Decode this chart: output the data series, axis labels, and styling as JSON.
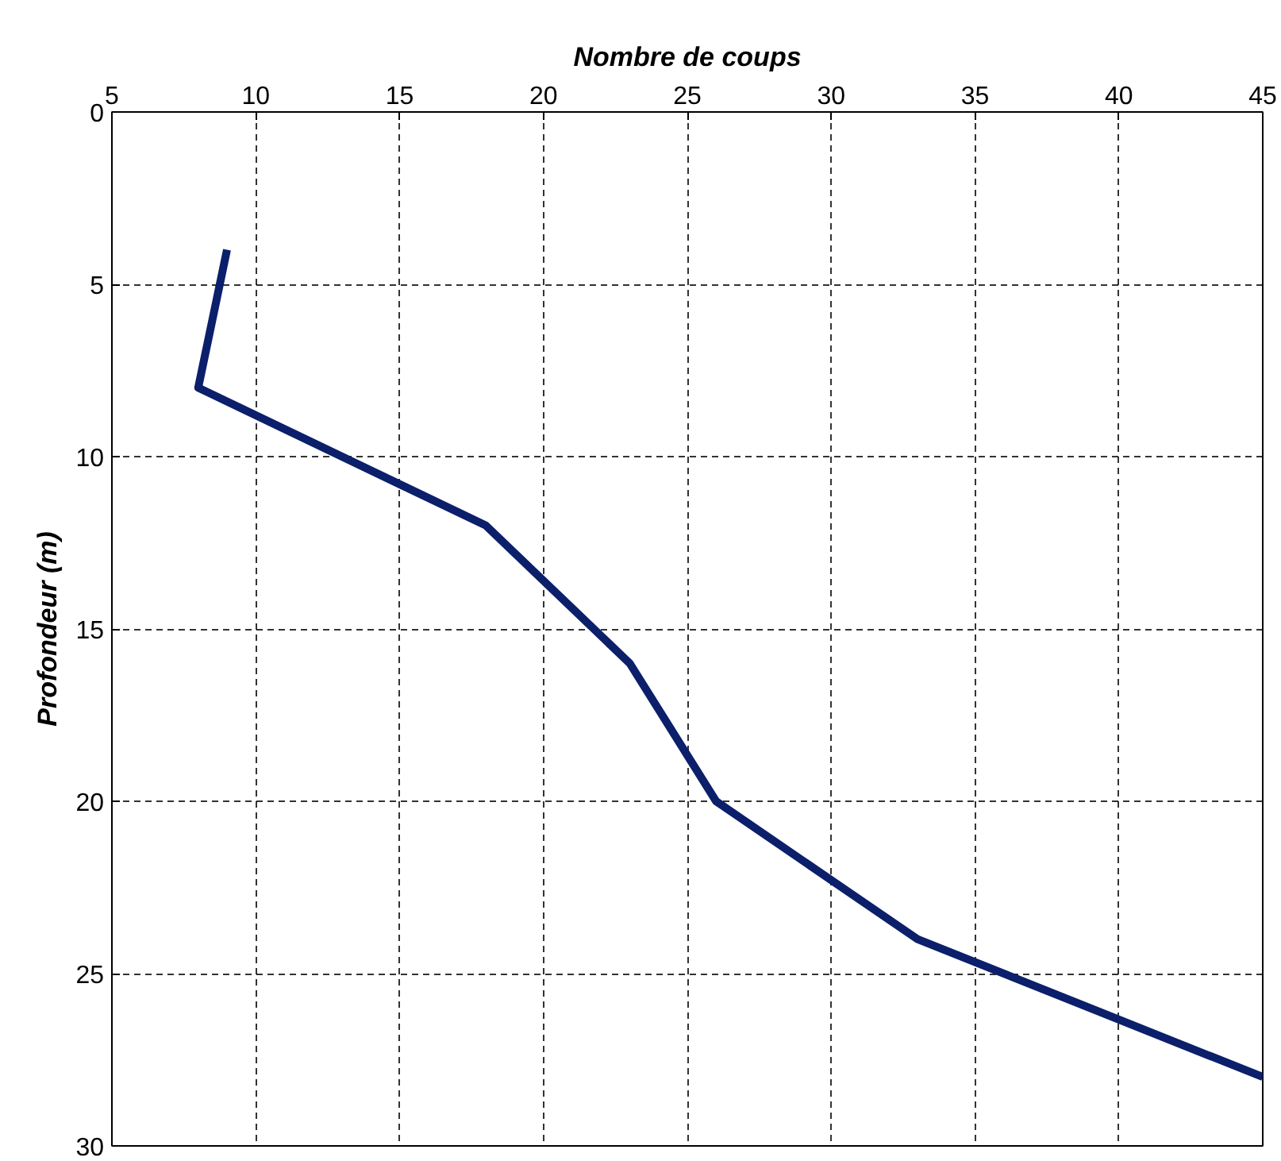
{
  "chart_data": {
    "type": "line",
    "xlabel": "Nombre de coups",
    "ylabel": "Profondeur (m)",
    "x": [
      9,
      8,
      18,
      23,
      26,
      33,
      45
    ],
    "series": [
      {
        "color": "#0b1f6b",
        "values": [
          4,
          8,
          12,
          16,
          20,
          24,
          28
        ]
      }
    ],
    "xlim": [
      5,
      45
    ],
    "xticks": [
      5,
      10,
      15,
      20,
      25,
      30,
      35,
      40,
      45
    ],
    "ylim": [
      30,
      0
    ],
    "yticks": [
      0,
      5,
      10,
      15,
      20,
      25,
      30
    ],
    "grid": true,
    "marker": "none",
    "line_style": "solid"
  }
}
